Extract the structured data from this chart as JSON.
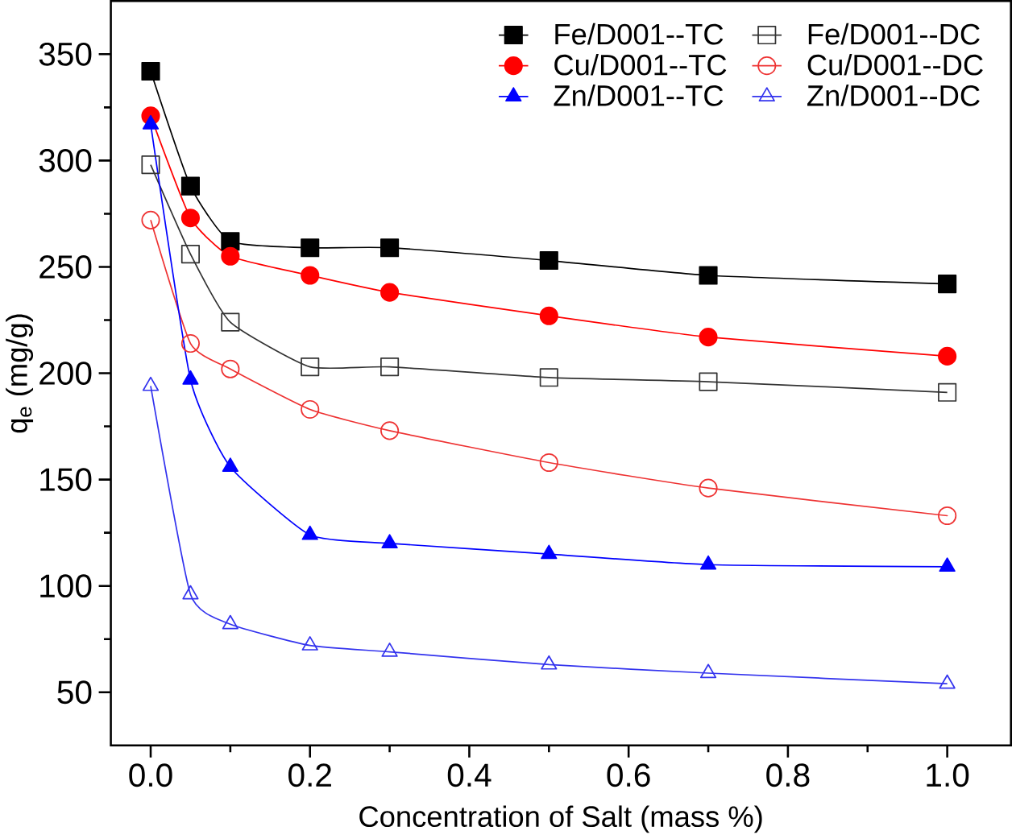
{
  "chart_data": {
    "type": "line",
    "xlabel": "Concentration of Salt (mass %)",
    "ylabel": "q$_{e}$ (mg/g)",
    "x": [
      0,
      0.05,
      0.1,
      0.2,
      0.3,
      0.5,
      0.7,
      1.0
    ],
    "series": [
      {
        "name": "Fe/D001--TC",
        "color": "#000000",
        "marker": "square",
        "values": [
          342,
          288,
          262,
          259,
          259,
          253,
          246,
          242
        ]
      },
      {
        "name": "Fe/D001--DC",
        "color": "#333333",
        "marker": "square",
        "values": [
          298,
          256,
          224,
          203,
          203,
          198,
          196,
          191
        ]
      },
      {
        "name": "Cu/D001--TC",
        "color": "#ff0000",
        "marker": "circle",
        "values": [
          321,
          273,
          255,
          246,
          238,
          227,
          217,
          208
        ]
      },
      {
        "name": "Cu/D001--DC",
        "color": "#ee3333",
        "marker": "circle",
        "values": [
          272,
          214,
          202,
          183,
          173,
          158,
          146,
          133
        ]
      },
      {
        "name": "Zn/D001--TC",
        "color": "#0000ff",
        "marker": "triangle",
        "values": [
          317,
          197,
          156,
          124,
          120,
          115,
          110,
          109
        ]
      },
      {
        "name": "Zn/D001--DC",
        "color": "#3333ee",
        "marker": "triangle",
        "values": [
          194,
          96,
          82,
          72,
          69,
          63,
          59,
          54
        ]
      }
    ],
    "xlim": [
      -0.05,
      1.08
    ],
    "ylim": [
      25,
      375
    ],
    "xticks": [
      {
        "value": 0,
        "label": "0.0"
      },
      0.2,
      0.4,
      0.6,
      0.8,
      {
        "value": 1.0,
        "label": "1.0"
      }
    ],
    "yticks": [
      50,
      100,
      150,
      200,
      250,
      300,
      350
    ],
    "grid": false,
    "legend": "top right",
    "line_style": "solid"
  }
}
